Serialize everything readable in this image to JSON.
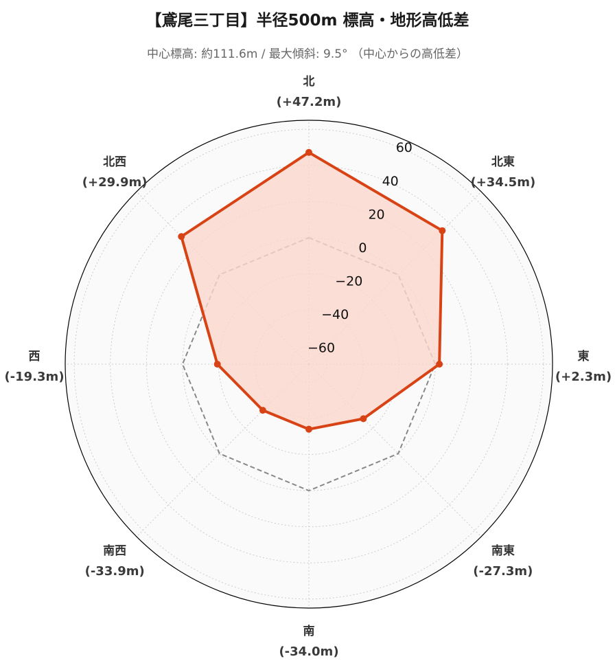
{
  "title": "【鳶尾三丁目】半径500m 標高・地形高低差",
  "subtitle": "中心標高: 約111.6m / 最大傾斜: 9.5° （中心からの高低差）",
  "colors": {
    "series": "#d84315",
    "fill": "#fbd7cc",
    "zero_line": "#888888",
    "grid": "#cccccc",
    "background": "#fafafa"
  },
  "chart_data": {
    "type": "radar",
    "categories": [
      "北",
      "北東",
      "東",
      "南東",
      "南",
      "南西",
      "西",
      "北西"
    ],
    "category_value_labels": [
      "(+47.2m)",
      "(+34.5m)",
      "(+2.3m)",
      "(-27.3m)",
      "(-34.0m)",
      "(-33.9m)",
      "(-19.3m)",
      "(+29.9m)"
    ],
    "values": [
      47.2,
      34.5,
      2.3,
      -27.3,
      -34.0,
      -33.9,
      -19.3,
      29.9
    ],
    "reference_line": 0,
    "rlim": [
      -70,
      65
    ],
    "rticks": [
      -60,
      -40,
      -20,
      0,
      20,
      40,
      60
    ],
    "rtick_labels": [
      "−60",
      "−40",
      "−20",
      "0",
      "20",
      "40",
      "60"
    ],
    "grid": true
  }
}
